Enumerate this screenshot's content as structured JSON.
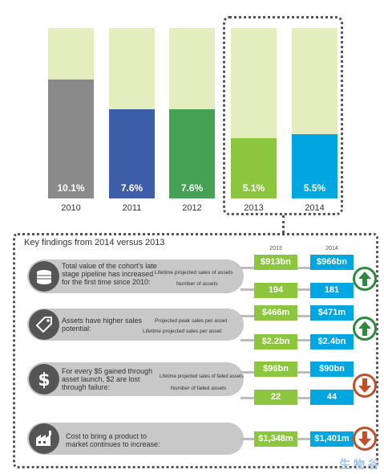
{
  "chart_data": {
    "type": "bar",
    "categories": [
      "2010",
      "2011",
      "2012",
      "2013",
      "2014"
    ],
    "values": [
      10.1,
      7.6,
      7.6,
      5.1,
      5.5
    ],
    "value_labels": [
      "10.1%",
      "7.6%",
      "7.6%",
      "5.1%",
      "5.5%"
    ],
    "colors": [
      "#8a8a8a",
      "#3d5ea8",
      "#45a153",
      "#8cc63f",
      "#00a6e0"
    ],
    "highlighted_categories": [
      "2013",
      "2014"
    ],
    "ylim": [
      0,
      14.5
    ],
    "title": "",
    "xlabel": "",
    "ylabel": ""
  },
  "findings": {
    "title": "Key findings from 2014 versus 2013",
    "col_2013": "2013",
    "col_2014": "2014",
    "rows": [
      {
        "icon": "coins-icon",
        "text": "Total value of the cohort's late stage pipeline has increased for the first time since 2010:",
        "metrics": [
          {
            "label": "Lifetime projected sales of assets",
            "v2013": "$913bn",
            "v2014": "$966bn"
          },
          {
            "label": "Number of assets",
            "v2013": "194",
            "v2014": "181"
          }
        ],
        "trend": "up"
      },
      {
        "icon": "price-tag-icon",
        "text": "Assets have higher sales potential:",
        "metrics": [
          {
            "label": "Projected peak sales per asset",
            "v2013": "$466m",
            "v2014": "$471m"
          },
          {
            "label": "Lifetime projected sales per asset",
            "v2013": "$2.2bn",
            "v2014": "$2.4bn"
          }
        ],
        "trend": "up"
      },
      {
        "icon": "dollar-icon",
        "text": "For every $5 gained through asset launch, $2 are lost through failure:",
        "metrics": [
          {
            "label": "Lifetime projected sales of failed assets",
            "v2013": "$96bn",
            "v2014": "$90bn"
          },
          {
            "label": "Number of failed assets",
            "v2013": "22",
            "v2014": "44"
          }
        ],
        "trend": "down"
      },
      {
        "icon": "factory-icon",
        "text": "Cost to bring a product to market continues to increase:",
        "metrics": [
          {
            "label": "",
            "v2013": "$1,348m",
            "v2014": "$1,401m"
          }
        ],
        "trend": "down"
      }
    ]
  },
  "watermark": "生 物 谷"
}
